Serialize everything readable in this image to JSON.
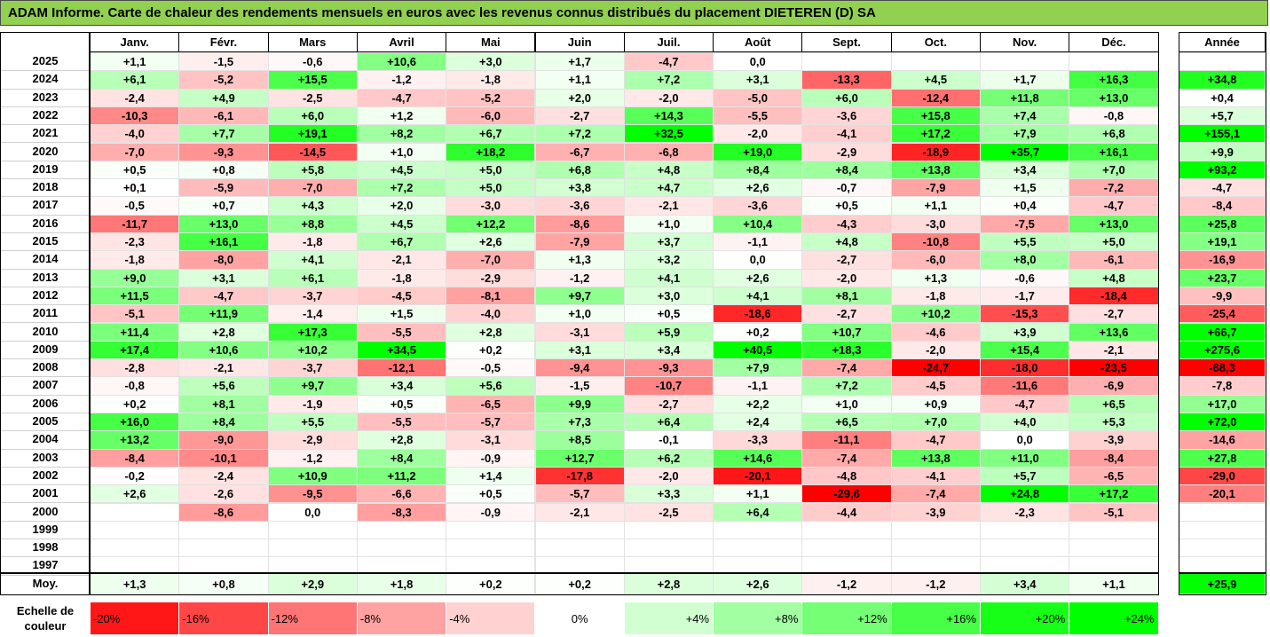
{
  "title": "ADAM Informe. Carte de chaleur des rendements mensuels en euros avec les revenus connus distribués du placement DIETEREN (D) SA",
  "months": [
    "Janv.",
    "Févr.",
    "Mars",
    "Avril",
    "Mai",
    "Juin",
    "Juil.",
    "Août",
    "Sept.",
    "Oct.",
    "Nov.",
    "Déc."
  ],
  "year_header": "Année",
  "avg_label": "Moy.",
  "scale_label": "Echelle de couleur",
  "scale": [
    {
      "label": "-20%",
      "value": -20
    },
    {
      "label": "-16%",
      "value": -16
    },
    {
      "label": "-12%",
      "value": -12
    },
    {
      "label": "-8%",
      "value": -8
    },
    {
      "label": "-4%",
      "value": -4
    },
    {
      "label": "0%",
      "value": 0
    },
    {
      "label": "+4%",
      "value": 4
    },
    {
      "label": "+8%",
      "value": 8
    },
    {
      "label": "+12%",
      "value": 12
    },
    {
      "label": "+16%",
      "value": 16
    },
    {
      "label": "+20%",
      "value": 20
    },
    {
      "label": "+24%",
      "value": 24
    }
  ],
  "colors": {
    "title_bg": "#92d050",
    "positive": "#00ff00",
    "negative": "#ff0000",
    "neutral": "#ffffff"
  },
  "chart_data": {
    "type": "heatmap",
    "title": "ADAM Informe. Carte de chaleur des rendements mensuels en euros avec les revenus connus distribués du placement DIETEREN (D) SA",
    "columns": [
      "Janv.",
      "Févr.",
      "Mars",
      "Avril",
      "Mai",
      "Juin",
      "Juil.",
      "Août",
      "Sept.",
      "Oct.",
      "Nov.",
      "Déc."
    ],
    "rows": [
      {
        "year": "2025",
        "months": [
          "+1,1",
          "-1,5",
          "-0,6",
          "+10,6",
          "+3,0",
          "+1,7",
          "-4,7",
          "0,0",
          "",
          "",
          "",
          ""
        ],
        "annual": ""
      },
      {
        "year": "2024",
        "months": [
          "+6,1",
          "-5,2",
          "+15,5",
          "-1,2",
          "-1,8",
          "+1,1",
          "+7,2",
          "+3,1",
          "-13,3",
          "+4,5",
          "+1,7",
          "+16,3"
        ],
        "annual": "+34,8"
      },
      {
        "year": "2023",
        "months": [
          "-2,4",
          "+4,9",
          "-2,5",
          "-4,7",
          "-5,2",
          "+2,0",
          "-2,0",
          "-5,0",
          "+6,0",
          "-12,4",
          "+11,8",
          "+13,0"
        ],
        "annual": "+0,4"
      },
      {
        "year": "2022",
        "months": [
          "-10,3",
          "-6,1",
          "+6,0",
          "+1,2",
          "-6,0",
          "-2,7",
          "+14,3",
          "-5,5",
          "-3,6",
          "+15,8",
          "+7,4",
          "-0,8"
        ],
        "annual": "+5,7"
      },
      {
        "year": "2021",
        "months": [
          "-4,0",
          "+7,7",
          "+19,1",
          "+8,2",
          "+6,7",
          "+7,2",
          "+32,5",
          "-2,0",
          "-4,1",
          "+17,2",
          "+7,9",
          "+6,8"
        ],
        "annual": "+155,1"
      },
      {
        "year": "2020",
        "months": [
          "-7,0",
          "-9,3",
          "-14,5",
          "+1,0",
          "+18,2",
          "-6,7",
          "-6,8",
          "+19,0",
          "-2,9",
          "-18,9",
          "+35,7",
          "+16,1"
        ],
        "annual": "+9,9"
      },
      {
        "year": "2019",
        "months": [
          "+0,5",
          "+0,8",
          "+5,8",
          "+4,5",
          "+5,0",
          "+6,8",
          "+4,8",
          "+8,4",
          "+8,4",
          "+13,8",
          "+3,4",
          "+7,0"
        ],
        "annual": "+93,2"
      },
      {
        "year": "2018",
        "months": [
          "+0,1",
          "-5,9",
          "-7,0",
          "+7,2",
          "+5,0",
          "+3,8",
          "+4,7",
          "+2,6",
          "-0,7",
          "-7,9",
          "+1,5",
          "-7,2"
        ],
        "annual": "-4,7"
      },
      {
        "year": "2017",
        "months": [
          "-0,5",
          "+0,7",
          "+4,3",
          "+2,0",
          "-3,0",
          "-3,6",
          "-2,1",
          "-3,6",
          "+0,5",
          "+1,1",
          "+0,4",
          "-4,7"
        ],
        "annual": "-8,4"
      },
      {
        "year": "2016",
        "months": [
          "-11,7",
          "+13,0",
          "+8,8",
          "+4,5",
          "+12,2",
          "-8,6",
          "+1,0",
          "+10,4",
          "-4,3",
          "-3,0",
          "-7,5",
          "+13,0"
        ],
        "annual": "+25,8"
      },
      {
        "year": "2015",
        "months": [
          "-2,3",
          "+16,1",
          "-1,8",
          "+6,7",
          "+2,6",
          "-7,9",
          "+3,7",
          "-1,1",
          "+4,8",
          "-10,8",
          "+5,5",
          "+5,0"
        ],
        "annual": "+19,1"
      },
      {
        "year": "2014",
        "months": [
          "-1,8",
          "-8,0",
          "+4,1",
          "-2,1",
          "-7,0",
          "+1,3",
          "+3,2",
          "0,0",
          "-2,7",
          "-6,0",
          "+8,0",
          "-6,1"
        ],
        "annual": "-16,9"
      },
      {
        "year": "2013",
        "months": [
          "+9,0",
          "+3,1",
          "+6,1",
          "-1,8",
          "-2,9",
          "-1,2",
          "+4,1",
          "+2,6",
          "-2,0",
          "+1,3",
          "-0,6",
          "+4,8"
        ],
        "annual": "+23,7"
      },
      {
        "year": "2012",
        "months": [
          "+11,5",
          "-4,7",
          "-3,7",
          "-4,5",
          "-8,1",
          "+9,7",
          "+3,0",
          "+4,1",
          "+8,1",
          "-1,8",
          "-1,7",
          "-18,4"
        ],
        "annual": "-9,9"
      },
      {
        "year": "2011",
        "months": [
          "-5,1",
          "+11,9",
          "-1,4",
          "+1,5",
          "-4,0",
          "+1,0",
          "+0,5",
          "-18,6",
          "-2,7",
          "+10,2",
          "-15,3",
          "-2,7"
        ],
        "annual": "-25,4"
      },
      {
        "year": "2010",
        "months": [
          "+11,4",
          "+2,8",
          "+17,3",
          "-5,5",
          "+2,8",
          "-3,1",
          "+5,9",
          "+0,2",
          "+10,7",
          "-4,6",
          "+3,9",
          "+13,6"
        ],
        "annual": "+66,7"
      },
      {
        "year": "2009",
        "months": [
          "+17,4",
          "+10,6",
          "+10,2",
          "+34,5",
          "+0,2",
          "+3,1",
          "+3,4",
          "+40,5",
          "+18,3",
          "-2,0",
          "+15,4",
          "-2,1"
        ],
        "annual": "+275,6"
      },
      {
        "year": "2008",
        "months": [
          "-2,8",
          "-2,1",
          "-3,7",
          "-12,1",
          "-0,5",
          "-9,4",
          "-9,3",
          "+7,9",
          "-7,4",
          "-24,7",
          "-18,0",
          "-23,5"
        ],
        "annual": "-68,3"
      },
      {
        "year": "2007",
        "months": [
          "-0,8",
          "+5,6",
          "+9,7",
          "+3,4",
          "+5,6",
          "-1,5",
          "-10,7",
          "-1,1",
          "+7,2",
          "-4,5",
          "-11,6",
          "-6,9"
        ],
        "annual": "-7,8"
      },
      {
        "year": "2006",
        "months": [
          "+0,2",
          "+8,1",
          "-1,9",
          "+0,5",
          "-6,5",
          "+9,9",
          "-2,7",
          "+2,2",
          "+1,0",
          "+0,9",
          "-4,7",
          "+6,5"
        ],
        "annual": "+17,0"
      },
      {
        "year": "2005",
        "months": [
          "+16,0",
          "+8,4",
          "+5,5",
          "-5,5",
          "-5,7",
          "+7,3",
          "+6,4",
          "+2,4",
          "+6,5",
          "+7,0",
          "+4,0",
          "+5,3"
        ],
        "annual": "+72,0"
      },
      {
        "year": "2004",
        "months": [
          "+13,2",
          "-9,0",
          "-2,9",
          "+2,8",
          "-3,1",
          "+8,5",
          "-0,1",
          "-3,3",
          "-11,1",
          "-4,7",
          "0,0",
          "-3,9"
        ],
        "annual": "-14,6"
      },
      {
        "year": "2003",
        "months": [
          "-8,4",
          "-10,1",
          "-1,2",
          "+8,4",
          "-0,9",
          "+12,7",
          "+6,2",
          "+14,6",
          "-7,4",
          "+13,8",
          "+11,0",
          "-8,4"
        ],
        "annual": "+27,8"
      },
      {
        "year": "2002",
        "months": [
          "-0,2",
          "-2,4",
          "+10,9",
          "+11,2",
          "+1,4",
          "-17,8",
          "-2,0",
          "-20,1",
          "-4,8",
          "-4,1",
          "+5,7",
          "-6,5"
        ],
        "annual": "-29,0"
      },
      {
        "year": "2001",
        "months": [
          "+2,6",
          "-2,6",
          "-9,5",
          "-6,6",
          "+0,5",
          "-5,7",
          "+3,3",
          "+1,1",
          "-29,6",
          "-7,4",
          "+24,8",
          "+17,2"
        ],
        "annual": "-20,1"
      },
      {
        "year": "2000",
        "months": [
          "",
          "-8,6",
          "0,0",
          "-8,3",
          "-0,9",
          "-2,1",
          "-2,5",
          "+6,4",
          "-4,4",
          "-3,9",
          "-2,3",
          "-5,1"
        ],
        "annual": ""
      },
      {
        "year": "1999",
        "months": [
          "",
          "",
          "",
          "",
          "",
          "",
          "",
          "",
          "",
          "",
          "",
          ""
        ],
        "annual": ""
      },
      {
        "year": "1998",
        "months": [
          "",
          "",
          "",
          "",
          "",
          "",
          "",
          "",
          "",
          "",
          "",
          ""
        ],
        "annual": ""
      },
      {
        "year": "1997",
        "months": [
          "",
          "",
          "",
          "",
          "",
          "",
          "",
          "",
          "",
          "",
          "",
          ""
        ],
        "annual": ""
      }
    ],
    "average": {
      "label": "Moy.",
      "months": [
        "+1,3",
        "+0,8",
        "+2,9",
        "+1,8",
        "+0,2",
        "+0,2",
        "+2,8",
        "+2,6",
        "-1,2",
        "-1,2",
        "+3,4",
        "+1,1"
      ],
      "annual": "+25,9"
    }
  }
}
